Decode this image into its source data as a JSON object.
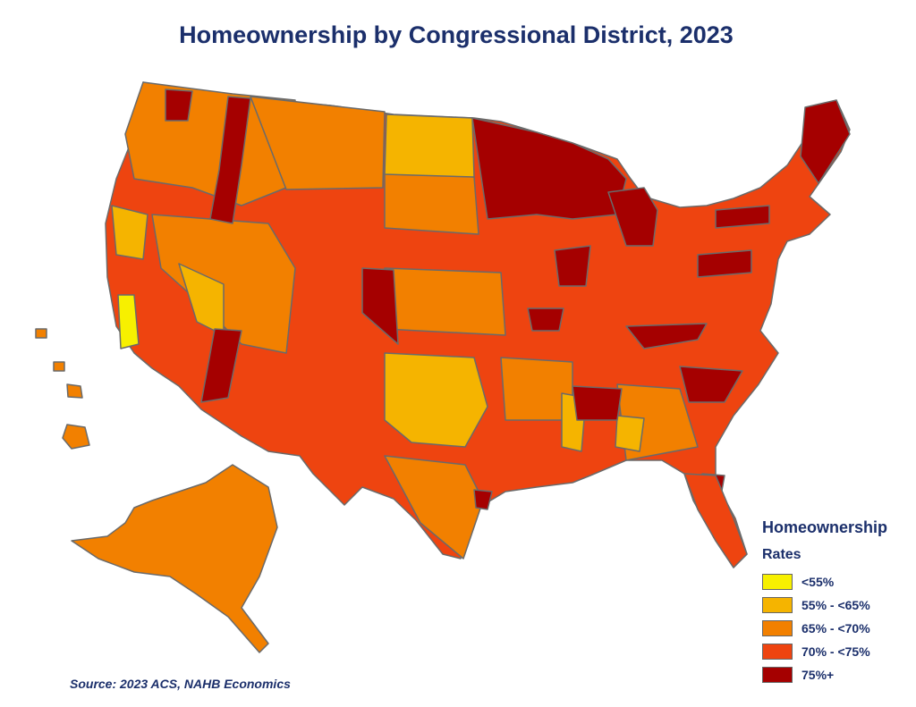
{
  "title": "Homeownership by Congressional District, 2023",
  "legend": {
    "title": "Homeownership",
    "subtitle": "Rates",
    "items": [
      {
        "label": "<55%",
        "color": "#f7f000"
      },
      {
        "label": "55% - <65%",
        "color": "#f5b400"
      },
      {
        "label": "65% - <70%",
        "color": "#f28000"
      },
      {
        "label": "70% - <75%",
        "color": "#ee4410"
      },
      {
        "label": "75%+",
        "color": "#a50000"
      }
    ]
  },
  "source": "Source: 2023 ACS, NAHB Economics",
  "colors": {
    "title": "#1b2f6b",
    "border": "#666666"
  }
}
